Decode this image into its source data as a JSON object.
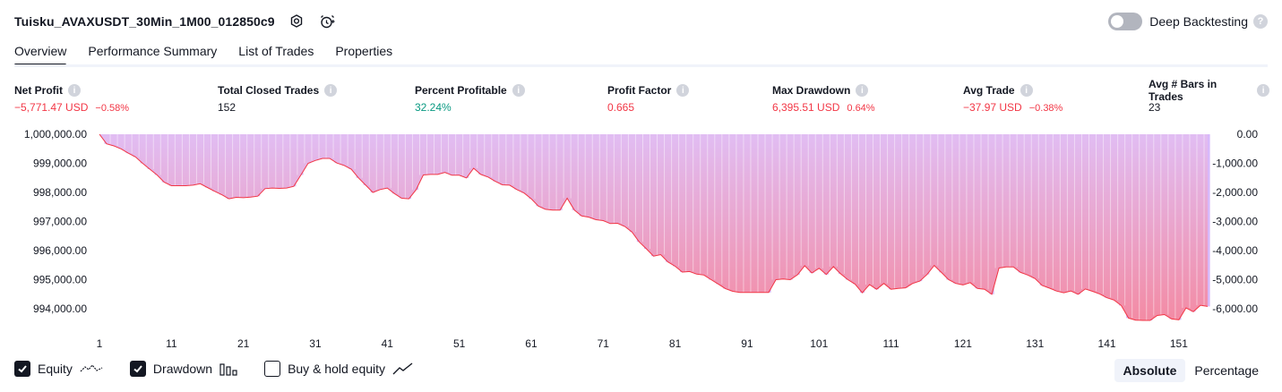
{
  "header": {
    "strategy_title": "Tuisku_AVAXUSDT_30Min_1M00_012850c9",
    "deep_backtesting_label": "Deep Backtesting",
    "deep_backtesting_enabled": false
  },
  "tabs": [
    {
      "label": "Overview",
      "active": true
    },
    {
      "label": "Performance Summary",
      "active": false
    },
    {
      "label": "List of Trades",
      "active": false
    },
    {
      "label": "Properties",
      "active": false
    }
  ],
  "stats": {
    "net_profit": {
      "label": "Net Profit",
      "value": "−5,771.47 USD",
      "pct": "−0.58%"
    },
    "total_closed_trades": {
      "label": "Total Closed Trades",
      "value": "152"
    },
    "percent_profitable": {
      "label": "Percent Profitable",
      "value": "32.24%"
    },
    "profit_factor": {
      "label": "Profit Factor",
      "value": "0.665"
    },
    "max_drawdown": {
      "label": "Max Drawdown",
      "value": "6,395.51 USD",
      "pct": "0.64%"
    },
    "avg_trade": {
      "label": "Avg Trade",
      "value": "−37.97 USD",
      "pct": "−0.38%"
    },
    "avg_bars": {
      "label": "Avg # Bars in Trades",
      "value": "23"
    }
  },
  "legend": {
    "equity": {
      "label": "Equity",
      "checked": true
    },
    "drawdown": {
      "label": "Drawdown",
      "checked": true
    },
    "buy_hold": {
      "label": "Buy & hold equity",
      "checked": false
    }
  },
  "view_mode": {
    "absolute_label": "Absolute",
    "percentage_label": "Percentage",
    "selected": "Absolute"
  },
  "colors": {
    "equity_line": "#f23645",
    "area_top": "#e1bdf3",
    "area_bottom": "#f38ba4",
    "drawdown_bar": "#d7b8fb",
    "negative": "#f23645",
    "positive": "#089981"
  },
  "chart_data": {
    "type": "area",
    "equity_ylim": [
      993600,
      1000000
    ],
    "drawdown_ylim": [
      -6400,
      0
    ],
    "left_axis_ticks": [
      "1,000,000.00",
      "999,000.00",
      "998,000.00",
      "997,000.00",
      "996,000.00",
      "995,000.00",
      "994,000.00"
    ],
    "left_axis_values": [
      1000000,
      999000,
      998000,
      997000,
      996000,
      995000,
      994000
    ],
    "right_axis_ticks": [
      "0.00",
      "-1,000.00",
      "-2,000.00",
      "-3,000.00",
      "-4,000.00",
      "-5,000.00",
      "-6,000.00"
    ],
    "right_axis_values": [
      0,
      -1000,
      -2000,
      -3000,
      -4000,
      -5000,
      -6000
    ],
    "x_ticks": [
      1,
      11,
      21,
      31,
      41,
      51,
      61,
      71,
      81,
      91,
      101,
      111,
      121,
      131,
      141,
      151
    ],
    "x_range": [
      0,
      153
    ],
    "equity": [
      1000000,
      999670,
      999600,
      999500,
      999350,
      999220,
      999000,
      998800,
      998600,
      998350,
      998230,
      998230,
      998230,
      998250,
      998300,
      998170,
      998040,
      997920,
      997780,
      997830,
      997820,
      997840,
      997870,
      998130,
      998150,
      998140,
      998150,
      998210,
      998600,
      999000,
      999100,
      999170,
      999170,
      999010,
      998930,
      998800,
      998500,
      998250,
      998000,
      998100,
      998150,
      997960,
      997800,
      997780,
      998090,
      998600,
      998620,
      998620,
      998690,
      998590,
      998590,
      998500,
      998830,
      998620,
      998530,
      998380,
      998260,
      998250,
      998100,
      997980,
      997780,
      997530,
      997420,
      997390,
      997390,
      997800,
      997390,
      997190,
      997150,
      997060,
      997030,
      996930,
      996940,
      996830,
      996640,
      996300,
      996060,
      995810,
      995860,
      995610,
      995460,
      995260,
      995280,
      995190,
      995160,
      995000,
      994850,
      994690,
      994600,
      994560,
      994560,
      994560,
      994560,
      994560,
      995000,
      995020,
      995000,
      995170,
      995480,
      995230,
      995390,
      995180,
      995450,
      995200,
      995000,
      994850,
      994550,
      994830,
      994670,
      994870,
      994670,
      994700,
      994720,
      994870,
      994950,
      995180,
      995490,
      995250,
      995000,
      994870,
      994820,
      994900,
      994700,
      994670,
      994500,
      995400,
      995440,
      995440,
      995250,
      995160,
      995040,
      994800,
      994710,
      994610,
      994550,
      994610,
      994500,
      994680,
      994600,
      994510,
      994380,
      994300,
      994110,
      993680,
      993610,
      993600,
      993600,
      993770,
      993800,
      993650,
      993620,
      994030,
      993900,
      994120,
      994080
    ]
  }
}
